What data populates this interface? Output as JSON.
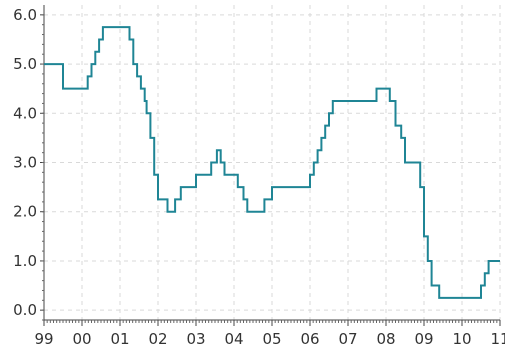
{
  "chart_data": {
    "type": "line",
    "title": "",
    "xlabel": "",
    "ylabel": "",
    "step": true,
    "grid": true,
    "legend": "none",
    "xlim": [
      1999.0,
      2011.0
    ],
    "ylim": [
      -0.2,
      6.2
    ],
    "x_ticks": [
      {
        "value": 1999,
        "label": "99"
      },
      {
        "value": 2000,
        "label": "00"
      },
      {
        "value": 2001,
        "label": "01"
      },
      {
        "value": 2002,
        "label": "02"
      },
      {
        "value": 2003,
        "label": "03"
      },
      {
        "value": 2004,
        "label": "04"
      },
      {
        "value": 2005,
        "label": "05"
      },
      {
        "value": 2006,
        "label": "06"
      },
      {
        "value": 2007,
        "label": "07"
      },
      {
        "value": 2008,
        "label": "08"
      },
      {
        "value": 2009,
        "label": "09"
      },
      {
        "value": 2010,
        "label": "10"
      },
      {
        "value": 2011,
        "label": "11"
      }
    ],
    "y_ticks": [
      {
        "value": 0,
        "label": "0.0"
      },
      {
        "value": 1,
        "label": "1.0"
      },
      {
        "value": 2,
        "label": "2.0"
      },
      {
        "value": 3,
        "label": "3.0"
      },
      {
        "value": 4,
        "label": "4.0"
      },
      {
        "value": 5,
        "label": "5.0"
      },
      {
        "value": 6,
        "label": "6.0"
      }
    ],
    "series": [
      {
        "color": "#1f8595",
        "x": [
          1999.0,
          1999.25,
          1999.5,
          1999.6,
          1999.75,
          2000.0,
          2000.15,
          2000.25,
          2000.35,
          2000.45,
          2000.55,
          2001.0,
          2001.1,
          2001.25,
          2001.35,
          2001.45,
          2001.55,
          2001.65,
          2001.7,
          2001.8,
          2001.9,
          2002.0,
          2002.25,
          2002.45,
          2002.6,
          2003.0,
          2003.1,
          2003.25,
          2003.4,
          2003.55,
          2003.65,
          2003.75,
          2004.0,
          2004.1,
          2004.25,
          2004.35,
          2004.45,
          2004.65,
          2004.8,
          2005.0,
          2005.25,
          2005.5,
          2005.75,
          2006.0,
          2006.1,
          2006.2,
          2006.3,
          2006.4,
          2006.5,
          2006.6,
          2006.7,
          2007.0,
          2007.25,
          2007.5,
          2007.75,
          2007.9,
          2008.1,
          2008.25,
          2008.4,
          2008.5,
          2008.75,
          2008.9,
          2009.0,
          2009.1,
          2009.2,
          2009.25,
          2009.4,
          2009.5,
          2009.75,
          2010.0,
          2010.25,
          2010.5,
          2010.6,
          2010.7,
          2010.8,
          2011.0
        ],
        "y": [
          5.0,
          5.0,
          4.5,
          4.5,
          4.5,
          4.5,
          4.75,
          5.0,
          5.25,
          5.5,
          5.75,
          5.75,
          5.75,
          5.5,
          5.0,
          4.75,
          4.5,
          4.25,
          4.0,
          3.5,
          2.75,
          2.25,
          2.0,
          2.25,
          2.5,
          2.75,
          2.75,
          2.75,
          3.0,
          3.25,
          3.0,
          2.75,
          2.75,
          2.5,
          2.25,
          2.0,
          2.0,
          2.0,
          2.25,
          2.5,
          2.5,
          2.5,
          2.5,
          2.75,
          3.0,
          3.25,
          3.5,
          3.75,
          4.0,
          4.25,
          4.25,
          4.25,
          4.25,
          4.25,
          4.5,
          4.5,
          4.25,
          3.75,
          3.5,
          3.0,
          3.0,
          2.5,
          1.5,
          1.0,
          0.5,
          0.5,
          0.25,
          0.25,
          0.25,
          0.25,
          0.25,
          0.5,
          0.75,
          1.0,
          1.0,
          1.0
        ]
      }
    ]
  }
}
